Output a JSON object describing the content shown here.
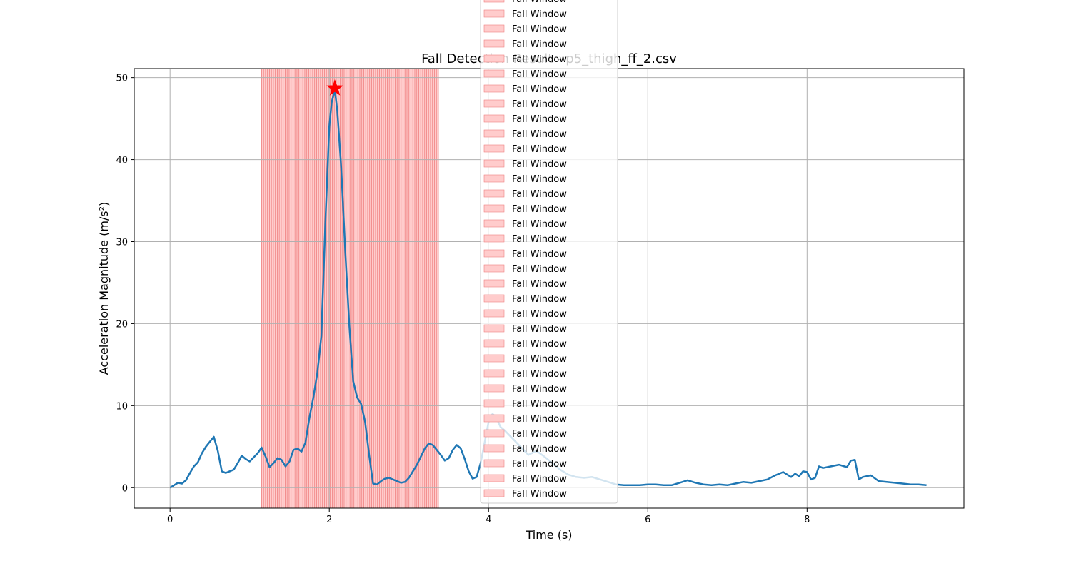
{
  "chart_data": {
    "type": "line",
    "title": "Fall Detection Result - p5_thigh_ff_2.csv",
    "xlabel": "Time (s)",
    "ylabel": "Acceleration Magnitude (m/s²)",
    "xlim": [
      -0.45,
      9.97
    ],
    "ylim": [
      -2.5,
      51.1
    ],
    "xticks": [
      0,
      2,
      4,
      6,
      8
    ],
    "yticks": [
      0,
      10,
      20,
      30,
      40,
      50
    ],
    "grid": true,
    "legend_placement": "upper center (extends past top of figure)",
    "fall_window_range_s": [
      1.15,
      3.37
    ],
    "fall_window_count": 90,
    "peak": {
      "x": 2.07,
      "y": 48.7
    },
    "series": [
      {
        "x": [
          0.0,
          0.05,
          0.1,
          0.15,
          0.2,
          0.25,
          0.3,
          0.35,
          0.4,
          0.45,
          0.5,
          0.55,
          0.6,
          0.65,
          0.7,
          0.75,
          0.8,
          0.85,
          0.9,
          0.95,
          1.0,
          1.05,
          1.1,
          1.15,
          1.2,
          1.25,
          1.3,
          1.35,
          1.4,
          1.45,
          1.5,
          1.55,
          1.6,
          1.65,
          1.7,
          1.75,
          1.8,
          1.85,
          1.9,
          1.95,
          2.0,
          2.03,
          2.07,
          2.1,
          2.15,
          2.2,
          2.25,
          2.3,
          2.35,
          2.4,
          2.45,
          2.5,
          2.55,
          2.6,
          2.65,
          2.7,
          2.75,
          2.8,
          2.85,
          2.9,
          2.95,
          3.0,
          3.05,
          3.1,
          3.15,
          3.2,
          3.25,
          3.3,
          3.35,
          3.4,
          3.45,
          3.5,
          3.55,
          3.6,
          3.65,
          3.7,
          3.75,
          3.8,
          3.85,
          3.9,
          3.95,
          4.0,
          4.05,
          4.1,
          4.15,
          4.2,
          4.3,
          4.4,
          4.5,
          4.6,
          4.7,
          4.8,
          4.9,
          5.0,
          5.1,
          5.2,
          5.3,
          5.4,
          5.5,
          5.6,
          5.7,
          5.8,
          5.9,
          6.0,
          6.1,
          6.2,
          6.3,
          6.4,
          6.5,
          6.6,
          6.7,
          6.8,
          6.9,
          7.0,
          7.1,
          7.2,
          7.3,
          7.4,
          7.5,
          7.6,
          7.7,
          7.8,
          7.85,
          7.9,
          7.95,
          8.0,
          8.05,
          8.1,
          8.15,
          8.2,
          8.3,
          8.4,
          8.5,
          8.55,
          8.6,
          8.65,
          8.7,
          8.8,
          8.9,
          9.0,
          9.1,
          9.2,
          9.3,
          9.4,
          9.5
        ],
        "y": [
          0.0,
          0.3,
          0.6,
          0.5,
          0.9,
          1.8,
          2.6,
          3.1,
          4.2,
          5.0,
          5.6,
          6.2,
          4.5,
          2.0,
          1.8,
          2.0,
          2.2,
          3.0,
          3.9,
          3.5,
          3.2,
          3.7,
          4.2,
          4.9,
          3.8,
          2.5,
          3.0,
          3.6,
          3.4,
          2.6,
          3.2,
          4.6,
          4.8,
          4.4,
          5.5,
          8.5,
          11.0,
          14.0,
          18.5,
          32.0,
          44.0,
          47.0,
          48.5,
          46.0,
          39.0,
          29.0,
          20.0,
          13.0,
          11.0,
          10.2,
          8.0,
          4.0,
          0.5,
          0.4,
          0.8,
          1.1,
          1.2,
          1.0,
          0.8,
          0.6,
          0.7,
          1.2,
          2.0,
          2.8,
          3.8,
          4.8,
          5.4,
          5.2,
          4.6,
          4.0,
          3.3,
          3.6,
          4.6,
          5.2,
          4.8,
          3.5,
          2.0,
          1.1,
          1.3,
          3.0,
          5.5,
          8.0,
          9.0,
          8.5,
          7.4,
          7.0,
          6.0,
          5.0,
          4.0,
          4.5,
          3.8,
          3.0,
          2.2,
          1.6,
          1.3,
          1.2,
          1.3,
          1.0,
          0.7,
          0.4,
          0.3,
          0.3,
          0.3,
          0.4,
          0.4,
          0.3,
          0.3,
          0.6,
          0.9,
          0.6,
          0.4,
          0.3,
          0.4,
          0.3,
          0.5,
          0.7,
          0.6,
          0.8,
          1.0,
          1.5,
          1.9,
          1.3,
          1.7,
          1.4,
          2.0,
          1.9,
          1.0,
          1.2,
          2.6,
          2.4,
          2.6,
          2.8,
          2.5,
          3.3,
          3.4,
          1.0,
          1.3,
          1.5,
          0.8,
          0.7,
          0.6,
          0.5,
          0.4,
          0.4,
          0.3
        ]
      }
    ]
  },
  "legend": {
    "label": "Fall Window",
    "visible_entries": 34
  },
  "colors": {
    "line": "#1f77b4",
    "fall_window_fill": "#ffcccc",
    "fall_window_edge": "#f08080",
    "peak_marker": "#ff0000",
    "grid": "#b0b0b0"
  }
}
